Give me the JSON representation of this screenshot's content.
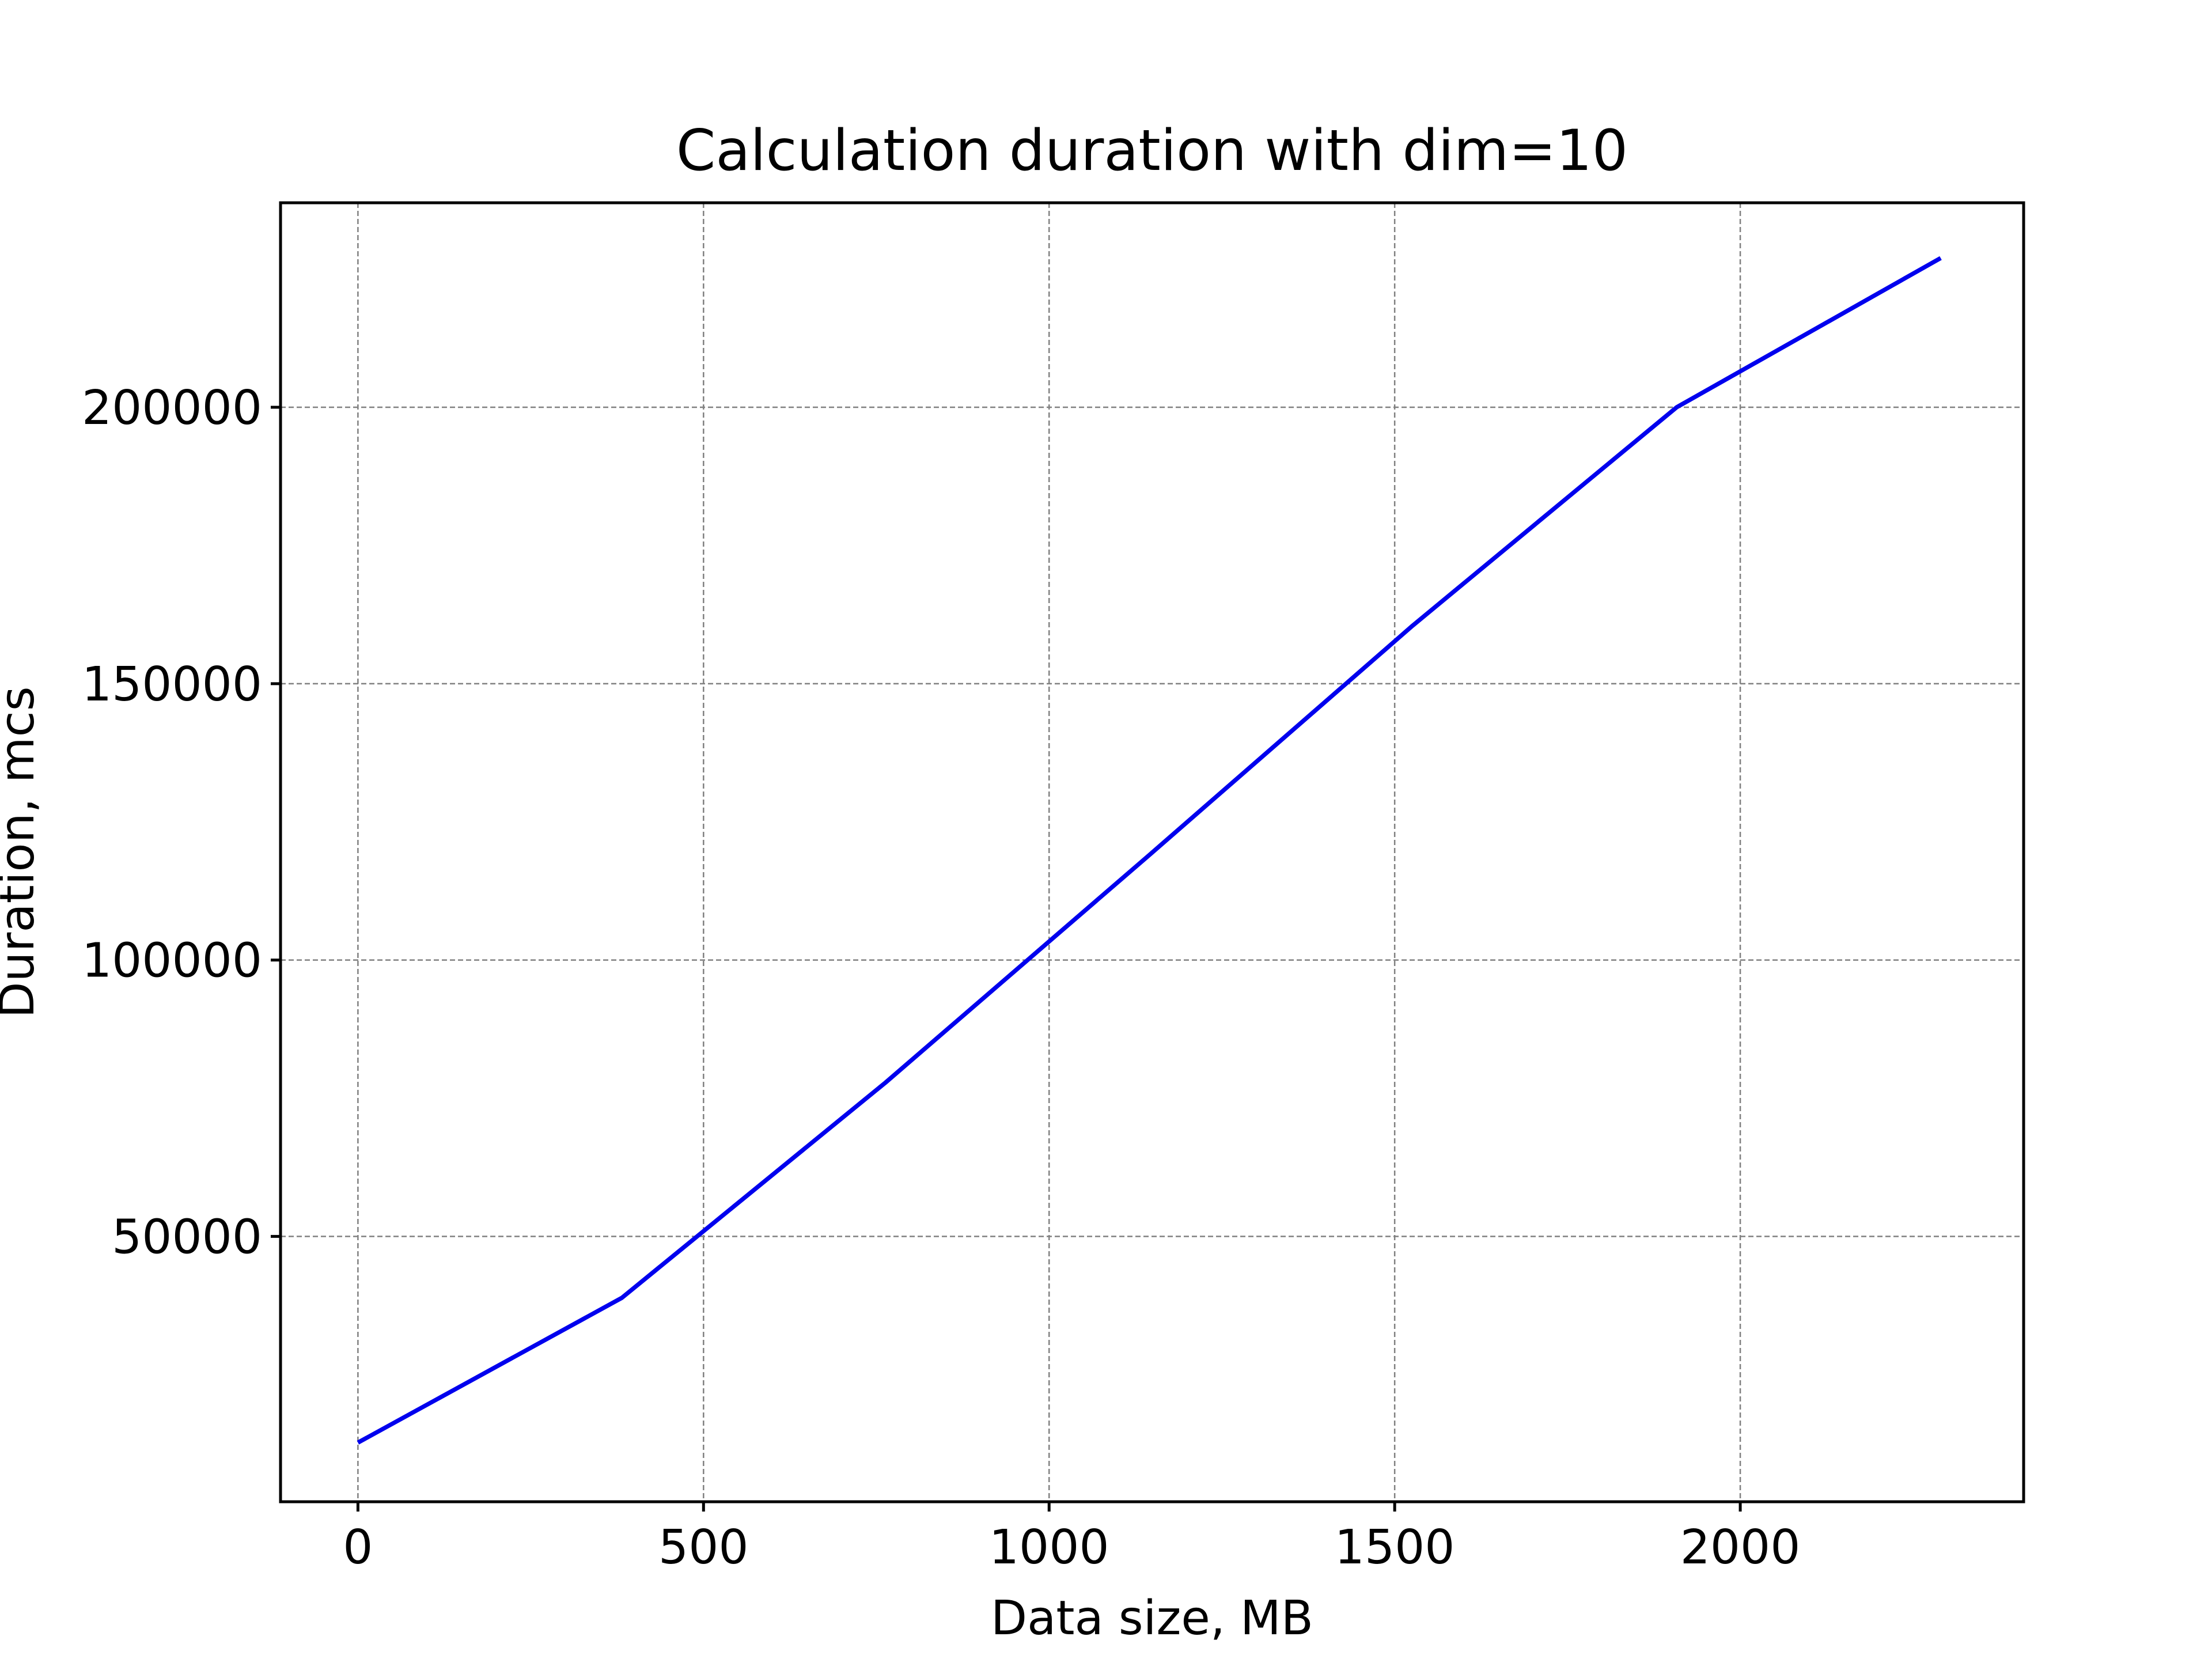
{
  "chart_data": {
    "type": "line",
    "title": "Calculation duration with dim=10",
    "xlabel": "Data size, MB",
    "ylabel": "Duration, mcs",
    "xlim": [
      -112,
      2410
    ],
    "ylim": [
      2000,
      237000
    ],
    "x_ticks": [
      0,
      500,
      1000,
      1500,
      2000
    ],
    "y_ticks": [
      50000,
      100000,
      150000,
      200000
    ],
    "x_tick_labels": [
      "0",
      "500",
      "1000",
      "1500",
      "2000"
    ],
    "y_tick_labels": [
      "50000",
      "100000",
      "150000",
      "200000"
    ],
    "grid": true,
    "grid_style": "dashed",
    "series": [
      {
        "color": "#0000ee",
        "x": [
          0,
          382,
          763,
          1145,
          1526,
          1908,
          2290
        ],
        "y": [
          12700,
          38900,
          77800,
          119000,
          160500,
          200000,
          227000
        ]
      }
    ]
  }
}
